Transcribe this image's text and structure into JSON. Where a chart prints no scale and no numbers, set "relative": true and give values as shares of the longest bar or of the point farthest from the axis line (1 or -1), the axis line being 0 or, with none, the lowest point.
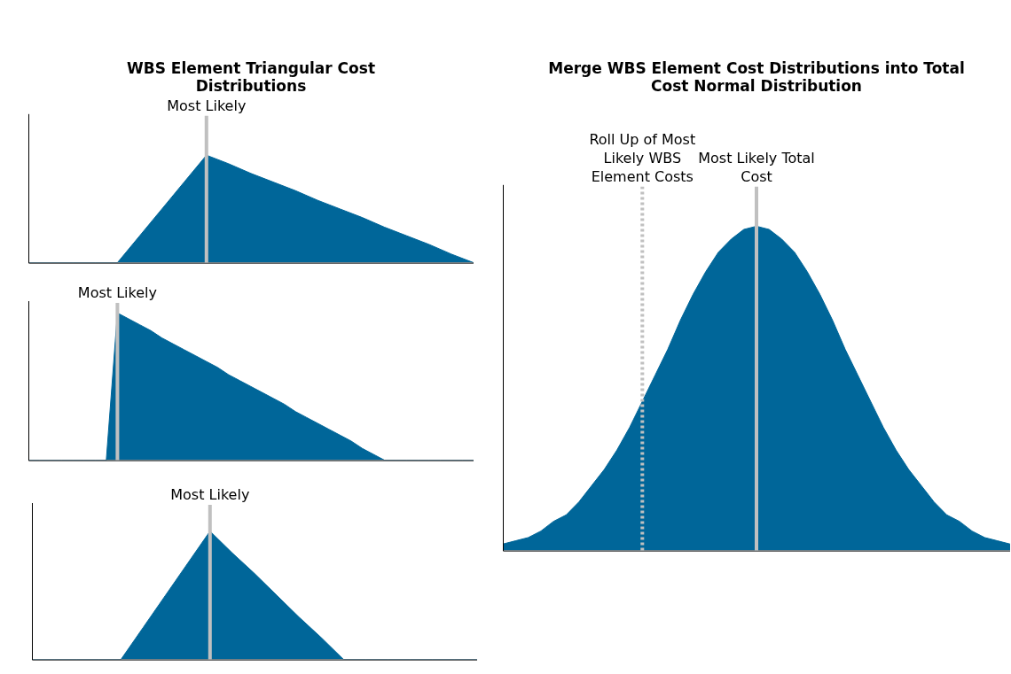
{
  "chart_data": [
    {
      "type": "area",
      "title": "WBS Element Triangular Cost Distributions",
      "relative": true,
      "grid": false,
      "legend": false,
      "categories": [
        null,
        null,
        null,
        null,
        null,
        null,
        null,
        null,
        null,
        null,
        null,
        null,
        null,
        null,
        null,
        null,
        null,
        null,
        null,
        null,
        null
      ],
      "series": [
        {
          "color": "#006699",
          "values": [
            0,
            0,
            0,
            0,
            0,
            0.25,
            0.5,
            0.75,
            1,
            0.92,
            0.83,
            0.75,
            0.67,
            0.58,
            0.5,
            0.42,
            0.33,
            0.25,
            0.17,
            0.08,
            0
          ]
        }
      ],
      "annotations": [
        "Most Likely"
      ]
    },
    {
      "type": "area",
      "relative": true,
      "grid": false,
      "legend": false,
      "categories": [
        null,
        null,
        null,
        null,
        null,
        null,
        null,
        null,
        null,
        null,
        null,
        null,
        null,
        null,
        null,
        null,
        null,
        null,
        null,
        null,
        null,
        null,
        null,
        null,
        null,
        null,
        null,
        null,
        null,
        null,
        null,
        null,
        null,
        null,
        null,
        null,
        null,
        null,
        null,
        null,
        null
      ],
      "series": [
        {
          "color": "#006699",
          "values": [
            0,
            0,
            0,
            0,
            0,
            0,
            0,
            0,
            1,
            0.96,
            0.92,
            0.88,
            0.83,
            0.79,
            0.75,
            0.71,
            0.67,
            0.63,
            0.58,
            0.54,
            0.5,
            0.46,
            0.42,
            0.38,
            0.33,
            0.29,
            0.25,
            0.21,
            0.17,
            0.13,
            0.08,
            0.04,
            0,
            0,
            0,
            0,
            0,
            0,
            0,
            0,
            0
          ]
        }
      ],
      "annotations": [
        "Most Likely"
      ]
    },
    {
      "type": "area",
      "relative": true,
      "grid": false,
      "legend": false,
      "categories": [
        null,
        null,
        null,
        null,
        null,
        null,
        null,
        null,
        null,
        null,
        null,
        null,
        null,
        null,
        null,
        null,
        null,
        null,
        null,
        null,
        null
      ],
      "series": [
        {
          "color": "#006699",
          "values": [
            0,
            0,
            0,
            0,
            0,
            0.25,
            0.5,
            0.75,
            1,
            0.83,
            0.67,
            0.5,
            0.33,
            0.17,
            0,
            0,
            0,
            0,
            0,
            0,
            0
          ]
        }
      ],
      "annotations": [
        "Most Likely"
      ]
    },
    {
      "type": "area",
      "title": "Merge WBS Element Cost Distributions into Total Cost Normal Distribution",
      "relative": true,
      "grid": false,
      "legend": false,
      "categories": [
        null,
        null,
        null,
        null,
        null,
        null,
        null,
        null,
        null,
        null,
        null,
        null,
        null,
        null,
        null,
        null,
        null,
        null,
        null,
        null,
        null,
        null,
        null,
        null,
        null,
        null,
        null,
        null,
        null,
        null,
        null,
        null,
        null,
        null,
        null,
        null,
        null,
        null,
        null,
        null,
        null
      ],
      "series": [
        {
          "color": "#006699",
          "values": [
            0.02,
            0.03,
            0.04,
            0.06,
            0.09,
            0.11,
            0.15,
            0.2,
            0.25,
            0.31,
            0.38,
            0.46,
            0.54,
            0.62,
            0.71,
            0.79,
            0.86,
            0.92,
            0.96,
            0.99,
            1,
            0.99,
            0.96,
            0.92,
            0.86,
            0.79,
            0.71,
            0.62,
            0.54,
            0.46,
            0.38,
            0.31,
            0.25,
            0.2,
            0.15,
            0.11,
            0.09,
            0.06,
            0.04,
            0.03,
            0.02
          ]
        }
      ],
      "annotations": [
        "Most Likely Total Cost",
        "Roll Up of Most Likely WBS Element Costs"
      ]
    }
  ]
}
